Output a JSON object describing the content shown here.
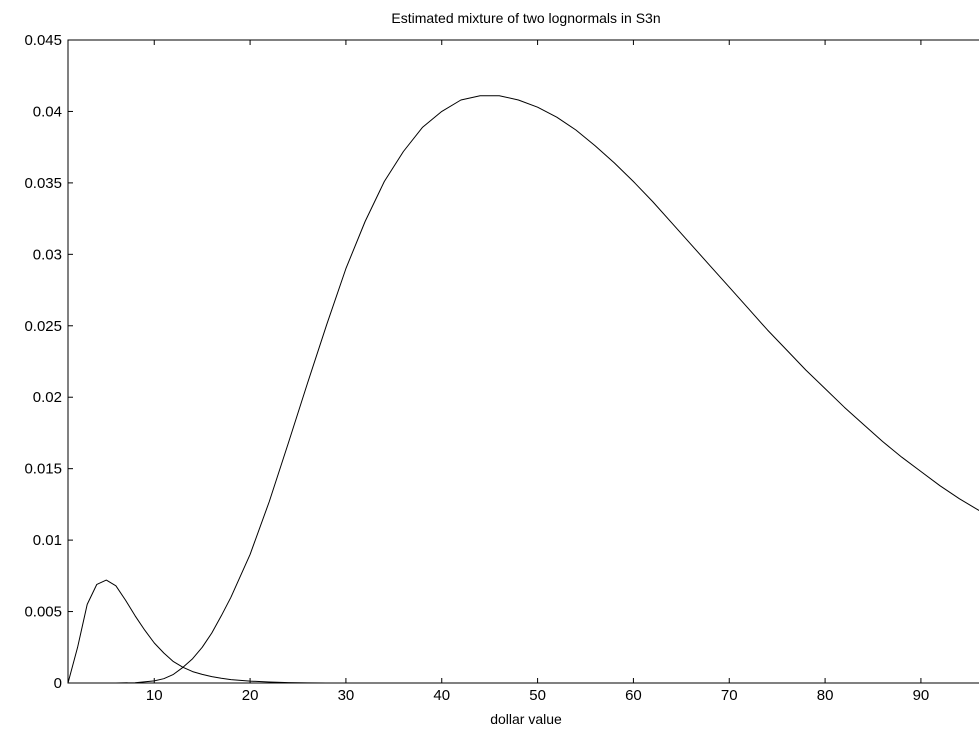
{
  "chart_data": {
    "type": "line",
    "title": "Estimated mixture of two lognormals in S3n",
    "xlabel": "dollar value",
    "ylabel": "",
    "xlim": [
      1,
      97
    ],
    "ylim": [
      0,
      0.045
    ],
    "xticks": [
      "10",
      "20",
      "30",
      "40",
      "50",
      "60",
      "70",
      "80",
      "90"
    ],
    "yticks": [
      "0",
      "0.005",
      "0.01",
      "0.015",
      "0.02",
      "0.025",
      "0.03",
      "0.035",
      "0.04",
      "0.045"
    ],
    "grid": false,
    "legend": "none",
    "line_color": "#000000",
    "series": [
      {
        "x": [
          1,
          2,
          3,
          4,
          5,
          6,
          7,
          8,
          9,
          10,
          11,
          12,
          13,
          14,
          15,
          16,
          17,
          18,
          20,
          22,
          24,
          26,
          28
        ],
        "y": [
          0,
          0.0025,
          0.0055,
          0.0069,
          0.0072,
          0.0068,
          0.0058,
          0.0047,
          0.0037,
          0.0028,
          0.0021,
          0.0015,
          0.0011,
          0.0008,
          0.0006,
          0.00045,
          0.00033,
          0.00024,
          0.00013,
          7e-05,
          3e-05,
          1e-05,
          0
        ]
      },
      {
        "x": [
          6,
          8,
          10,
          11,
          12,
          13,
          14,
          15,
          16,
          17,
          18,
          20,
          22,
          24,
          26,
          28,
          30,
          32,
          34,
          36,
          38,
          40,
          42,
          44,
          46,
          48,
          50,
          52,
          54,
          56,
          58,
          60,
          62,
          64,
          66,
          68,
          70,
          72,
          74,
          76,
          78,
          80,
          82,
          84,
          86,
          88,
          90,
          92,
          94,
          96,
          97
        ],
        "y": [
          0,
          2e-05,
          0.00015,
          0.0003,
          0.0006,
          0.0011,
          0.0017,
          0.0025,
          0.0035,
          0.0047,
          0.006,
          0.009,
          0.0127,
          0.0168,
          0.021,
          0.0251,
          0.029,
          0.0323,
          0.0351,
          0.0372,
          0.0389,
          0.04,
          0.0408,
          0.0411,
          0.0411,
          0.0408,
          0.0403,
          0.0396,
          0.0387,
          0.0376,
          0.0364,
          0.0351,
          0.0337,
          0.0322,
          0.0307,
          0.0292,
          0.0277,
          0.0262,
          0.0247,
          0.0233,
          0.0219,
          0.0206,
          0.0193,
          0.0181,
          0.0169,
          0.0158,
          0.0148,
          0.0138,
          0.0129,
          0.0121,
          0.0117
        ]
      }
    ]
  }
}
